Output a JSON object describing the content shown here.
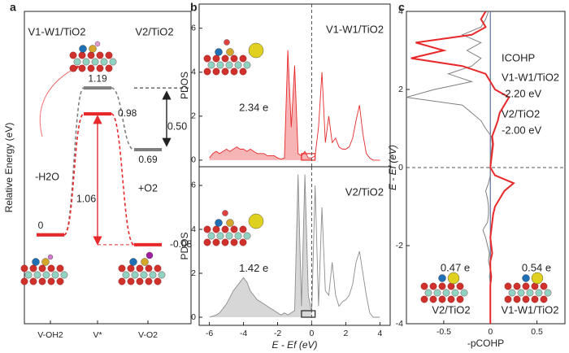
{
  "chart_data": [
    {
      "type": "energy",
      "panel": "a",
      "ylabel": "Relative Energy (eV)",
      "categories": [
        "V-OH2",
        "V*",
        "V-O2"
      ],
      "ylim": [
        -0.72,
        1.81
      ],
      "series": [
        {
          "name": "V1-W1/TiO2",
          "color": "#e8292b",
          "values": [
            0,
            0.98,
            -0.08
          ]
        },
        {
          "name": "V2/TiO2",
          "color": "#7f7f7f",
          "values": [
            0,
            1.19,
            0.69
          ]
        }
      ],
      "annotations": [
        "-H2O",
        "+O2",
        "1.06",
        "0.50"
      ]
    },
    {
      "type": "pdos",
      "panel": "b",
      "ylabel": "PDOS",
      "x": [
        -6,
        -5.8,
        -5.6,
        -5.4,
        -5.2,
        -5,
        -4.8,
        -4.6,
        -4.4,
        -4.2,
        -4,
        -3.8,
        -3.6,
        -3.4,
        -3.2,
        -3,
        -2.8,
        -2.6,
        -2.4,
        -2.2,
        -2,
        -1.8,
        -1.6,
        -1.4,
        -1.2,
        -1,
        -0.8,
        -0.6,
        -0.4,
        -0.2,
        0,
        0.2,
        0.4,
        0.6,
        0.8,
        1,
        1.2,
        1.4,
        1.6,
        1.8,
        2,
        2.2,
        2.4,
        2.6,
        2.8,
        3,
        3.2,
        3.4,
        3.6,
        3.8,
        4
      ],
      "xlim": [
        -6.6,
        4.6
      ],
      "ylim": [
        -0.3,
        7.1
      ],
      "yticks": [
        0,
        2,
        4,
        6
      ],
      "series": [
        {
          "name": "V1-W1/TiO2",
          "color": "#e8292b",
          "values": [
            0.1,
            0.3,
            0.4,
            0.3,
            0.4,
            0.5,
            0.4,
            0.5,
            0.6,
            0.5,
            0.5,
            0.4,
            0.5,
            0.4,
            0.3,
            0.3,
            0.3,
            0.2,
            0.2,
            0.2,
            0.1,
            0.05,
            0.1,
            5.0,
            1.5,
            4.3,
            0.3,
            0.2,
            0.4,
            0.1,
            0.1,
            0.2,
            1.5,
            4.0,
            0.8,
            2.0,
            0.8,
            1.0,
            0.6,
            0.5,
            0.5,
            0.6,
            1.0,
            1.8,
            2.5,
            1.2,
            0.3,
            0.1,
            0,
            0,
            0
          ]
        }
      ],
      "annotations": [
        "2.34 e"
      ]
    },
    {
      "type": "pdos",
      "ylabel": "PDOS",
      "xlabel": "E - Ef (eV)",
      "x": [
        -6,
        -5.8,
        -5.6,
        -5.4,
        -5.2,
        -5,
        -4.8,
        -4.6,
        -4.4,
        -4.2,
        -4,
        -3.8,
        -3.6,
        -3.4,
        -3.2,
        -3,
        -2.8,
        -2.6,
        -2.4,
        -2.2,
        -2,
        -1.8,
        -1.6,
        -1.4,
        -1.2,
        -1,
        -0.8,
        -0.6,
        -0.4,
        -0.2,
        0,
        0.2,
        0.4,
        0.6,
        0.8,
        1,
        1.2,
        1.4,
        1.6,
        1.8,
        2,
        2.2,
        2.4,
        2.6,
        2.8,
        3,
        3.2,
        3.4,
        3.6,
        3.8,
        4
      ],
      "xlim": [
        -6.6,
        4.6
      ],
      "ylim": [
        -0.37,
        6.85
      ],
      "xticks": [
        -6,
        -4,
        -2,
        0,
        2,
        4
      ],
      "yticks": [
        0,
        2,
        4,
        6
      ],
      "series": [
        {
          "name": "V2/TiO2",
          "color": "#8c8c8c",
          "values": [
            0,
            0.05,
            0.1,
            0.2,
            0.4,
            0.6,
            0.9,
            1.2,
            1.4,
            1.6,
            1.8,
            1.6,
            1.2,
            1.0,
            0.8,
            0.7,
            0.6,
            0.5,
            0.4,
            0.3,
            0.2,
            0.1,
            0.2,
            0.1,
            0.2,
            0.3,
            6.5,
            0.5,
            6.5,
            1.0,
            0.2,
            6.0,
            0.5,
            5.0,
            1.2,
            1.0,
            2.5,
            1.0,
            0.5,
            0.7,
            0.8,
            1.0,
            1.5,
            2.5,
            3.0,
            2.0,
            1.0,
            0.2,
            0,
            0,
            0
          ]
        }
      ],
      "annotations": [
        "1.42 e"
      ]
    },
    {
      "type": "cohp",
      "panel": "c",
      "xlabel": "-pCOHP",
      "ylabel": "E - Ef (eV)",
      "legend_title": "ICOHP",
      "y": [
        -4,
        -3.8,
        -3.6,
        -3.4,
        -3.2,
        -3,
        -2.8,
        -2.6,
        -2.4,
        -2.2,
        -2,
        -1.8,
        -1.6,
        -1.4,
        -1.2,
        -1,
        -0.8,
        -0.6,
        -0.4,
        -0.2,
        0,
        0.2,
        0.4,
        0.6,
        0.8,
        1,
        1.2,
        1.4,
        1.6,
        1.8,
        2,
        2.2,
        2.4,
        2.6,
        2.8,
        3,
        3.2,
        3.4,
        3.6,
        3.8,
        4
      ],
      "xlim": [
        -0.9,
        0.8
      ],
      "ylim": [
        -4,
        4
      ],
      "xticks": [
        -0.5,
        0,
        0.5
      ],
      "yticks": [
        -4,
        -2,
        0,
        2,
        4
      ],
      "series": [
        {
          "name": "V1-W1/TiO2",
          "color": "#e8292b",
          "icohp": "-2.20 eV",
          "values": [
            0,
            0,
            0,
            0,
            0,
            0,
            0.01,
            0,
            0,
            0.02,
            0.01,
            0,
            0.01,
            0.02,
            0.03,
            0.05,
            0.1,
            0.15,
            0.25,
            0.05,
            0,
            0.01,
            0.02,
            0.03,
            0.02,
            0.05,
            0.08,
            0.1,
            0.15,
            0.2,
            0.05,
            0,
            -0.05,
            -0.3,
            -0.85,
            -0.5,
            -0.8,
            -0.2,
            -0.05,
            -0.1,
            -0.05
          ]
        },
        {
          "name": "V2/TiO2",
          "color": "#7f7f7f",
          "icohp": "-2.00 eV",
          "values": [
            0,
            0,
            0,
            0,
            0,
            0,
            -0.01,
            0,
            -0.02,
            -0.01,
            -0.03,
            -0.05,
            -0.08,
            -0.03,
            -0.02,
            -0.02,
            -0.03,
            -0.05,
            -0.02,
            0,
            0,
            0,
            0.01,
            0.02,
            0.01,
            -0.05,
            -0.1,
            -0.2,
            -0.3,
            -0.9,
            -0.6,
            -0.2,
            -0.45,
            -0.2,
            -0.1,
            -0.25,
            -0.1,
            -0.3,
            -0.1,
            -0.05,
            -0.02
          ]
        }
      ],
      "annotations": [
        "0.47 e",
        "V2/TiO2",
        "0.54 e",
        "V1-W1/TiO2"
      ]
    }
  ]
}
